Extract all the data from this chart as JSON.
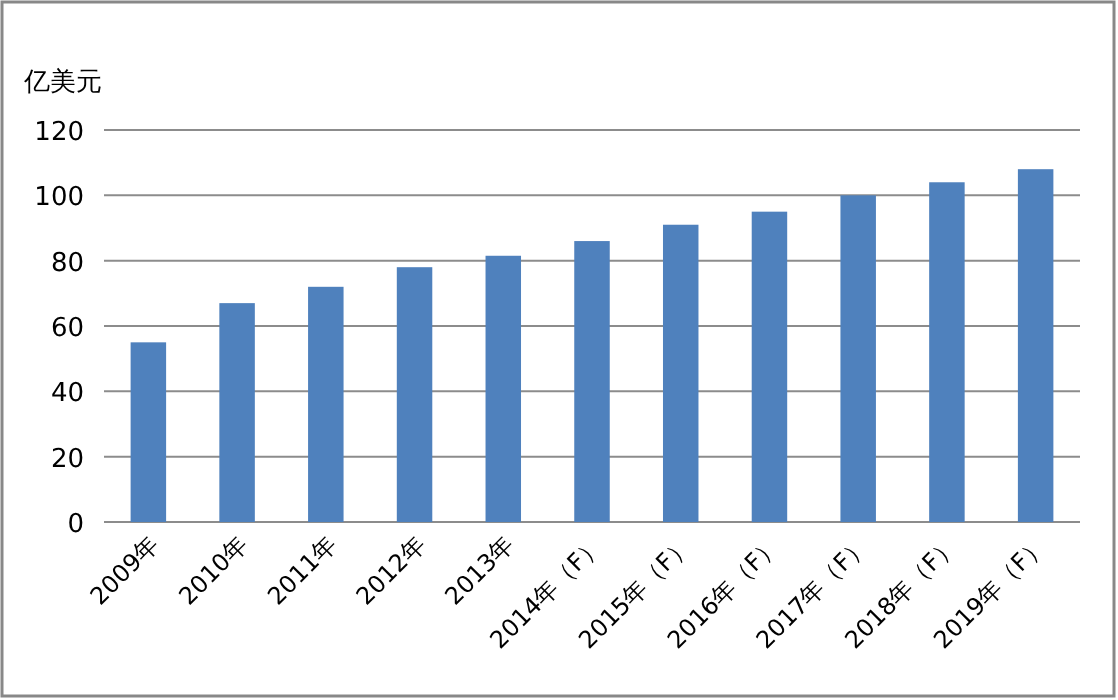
{
  "chart_data": {
    "type": "bar",
    "ylabel": "亿美元",
    "categories": [
      "2009年",
      "2010年",
      "2011年",
      "2012年",
      "2013年",
      "2014年（F）",
      "2015年（F）",
      "2016年（F）",
      "2017年（F）",
      "2018年（F）",
      "2019年（F）"
    ],
    "values": [
      55,
      67,
      72,
      78,
      81.5,
      86,
      91,
      95,
      100,
      104,
      108
    ],
    "color": "#4f81bd",
    "ylim": [
      0,
      120
    ],
    "yticks": [
      0,
      20,
      40,
      60,
      80,
      100,
      120
    ],
    "grid": "y"
  }
}
